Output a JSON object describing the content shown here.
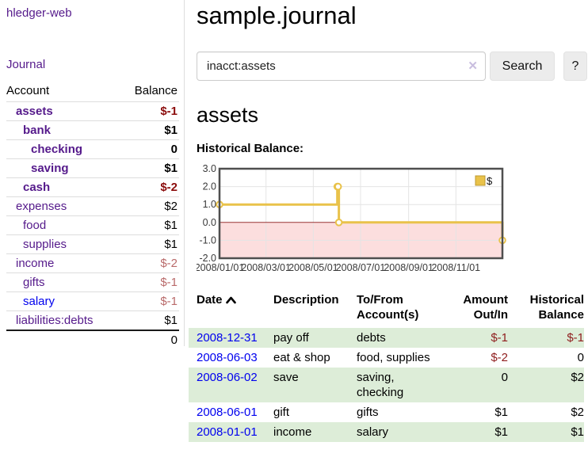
{
  "app": {
    "brand": "hledger-web",
    "nav_journal": "Journal"
  },
  "sidebar": {
    "account_header": "Account",
    "balance_header": "Balance",
    "rows": [
      {
        "name": "assets",
        "balance": "$-1",
        "depth": 1,
        "selected": true,
        "balance_class": "neg-strong"
      },
      {
        "name": "bank",
        "balance": "$1",
        "depth": 2,
        "selected": true,
        "balance_class": ""
      },
      {
        "name": "checking",
        "balance": "0",
        "depth": 3,
        "selected": true,
        "balance_class": ""
      },
      {
        "name": "saving",
        "balance": "$1",
        "depth": 3,
        "selected": true,
        "balance_class": ""
      },
      {
        "name": "cash",
        "balance": "$-2",
        "depth": 2,
        "selected": true,
        "balance_class": "neg-strong"
      },
      {
        "name": "expenses",
        "balance": "$2",
        "depth": 1,
        "selected": false,
        "balance_class": ""
      },
      {
        "name": "food",
        "balance": "$1",
        "depth": 2,
        "selected": false,
        "balance_class": ""
      },
      {
        "name": "supplies",
        "balance": "$1",
        "depth": 2,
        "selected": false,
        "balance_class": ""
      },
      {
        "name": "income",
        "balance": "$-2",
        "depth": 1,
        "selected": false,
        "balance_class": "neg-soft"
      },
      {
        "name": "gifts",
        "balance": "$-1",
        "depth": 2,
        "selected": false,
        "balance_class": "neg-soft"
      },
      {
        "name": "salary",
        "balance": "$-1",
        "depth": 2,
        "selected": false,
        "balance_class": "neg-soft",
        "blue": true
      },
      {
        "name": "liabilities:debts",
        "balance": "$1",
        "depth": 1,
        "selected": false,
        "balance_class": ""
      }
    ],
    "total": "0"
  },
  "main": {
    "title": "sample.journal",
    "search": {
      "query": "inacct:assets",
      "clear_icon": "✕",
      "button_label": "Search",
      "help_label": "?"
    },
    "account_heading": "assets",
    "chart_label": "Historical Balance:"
  },
  "chart_data": {
    "type": "line",
    "step": true,
    "title": "Historical Balance",
    "x_range": [
      "2008-01-01",
      "2008-12-31"
    ],
    "ylim": [
      -2,
      3
    ],
    "x_ticks": [
      "2008/01/01",
      "2008/03/01",
      "2008/05/01",
      "2008/07/01",
      "2008/09/01",
      "2008/11/01"
    ],
    "y_ticks": [
      3.0,
      2.0,
      1.0,
      0.0,
      -1.0,
      -2.0
    ],
    "grid": true,
    "legend_position": "top-right",
    "legend": [
      "$"
    ],
    "zero_line_color": "#993333",
    "negative_region_color": "#fcdede",
    "series": [
      {
        "name": "$",
        "color": "#e9c24a",
        "points": [
          {
            "date": "2008-01-01",
            "value": 1
          },
          {
            "date": "2008-06-01",
            "value": 2
          },
          {
            "date": "2008-06-02",
            "value": 2
          },
          {
            "date": "2008-06-03",
            "value": 0
          },
          {
            "date": "2008-12-31",
            "value": -1
          }
        ]
      }
    ]
  },
  "register": {
    "headers": {
      "date": "Date",
      "description": "Description",
      "tofrom_line1": "To/From",
      "tofrom_line2": "Account(s)",
      "amount_line1": "Amount",
      "amount_line2": "Out/In",
      "balance_line1": "Historical",
      "balance_line2": "Balance"
    },
    "rows": [
      {
        "date": "2008-12-31",
        "description": "pay off",
        "accounts": "debts",
        "amount": "$-1",
        "amount_neg": true,
        "balance": "$-1",
        "balance_neg": true
      },
      {
        "date": "2008-06-03",
        "description": "eat & shop",
        "accounts": "food, supplies",
        "amount": "$-2",
        "amount_neg": true,
        "balance": "0",
        "balance_neg": false
      },
      {
        "date": "2008-06-02",
        "description": "save",
        "accounts": "saving,\nchecking",
        "amount": "0",
        "amount_neg": false,
        "balance": "$2",
        "balance_neg": false
      },
      {
        "date": "2008-06-01",
        "description": "gift",
        "accounts": "gifts",
        "amount": "$1",
        "amount_neg": false,
        "balance": "$2",
        "balance_neg": false
      },
      {
        "date": "2008-01-01",
        "description": "income",
        "accounts": "salary",
        "amount": "$1",
        "amount_neg": false,
        "balance": "$1",
        "balance_neg": false
      }
    ]
  },
  "colors": {
    "link_purple": "#551a8b",
    "link_blue": "#0000ee",
    "negative_strong": "#8b0c0c",
    "negative_soft": "#b96a6a",
    "negative_table": "#8f1d1d",
    "row_green": "#ddedd8",
    "chart_line": "#e9c24a",
    "chart_border": "#4f4f4f"
  }
}
